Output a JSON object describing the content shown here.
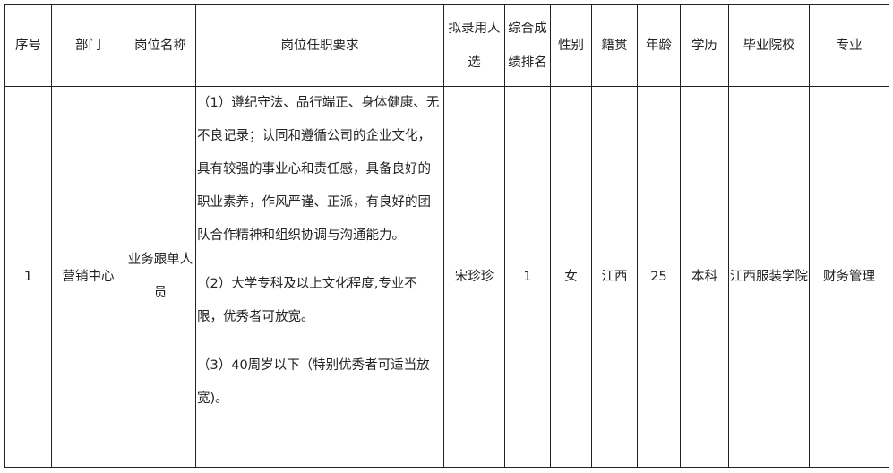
{
  "table": {
    "headers": [
      "序号",
      "部门",
      "岗位名称",
      "岗位任职要求",
      "拟录用人选",
      "综合成绩排名",
      "性别",
      "籍贯",
      "年龄",
      "学历",
      "毕业院校",
      "专业"
    ],
    "rows": [
      {
        "index": "1",
        "department": "营销中心",
        "position": "业务跟单人员",
        "requirements": [
          "（1）遵纪守法、品行端正、身体健康、无不良记录；认同和遵循公司的企业文化，具有较强的事业心和责任感，具备良好的职业素养，作风严谨、正派，有良好的团队合作精神和组织协调与沟通能力。",
          "（2）大学专科及以上文化程度,专业不限，优秀者可放宽。",
          "（3）40周岁以下（特别优秀者可适当放宽)。"
        ],
        "candidate": "宋珍珍",
        "rank": "1",
        "gender": "女",
        "native_place": "江西",
        "age": "25",
        "education": "本科",
        "school": "江西服装学院",
        "major": "财务管理"
      }
    ]
  }
}
